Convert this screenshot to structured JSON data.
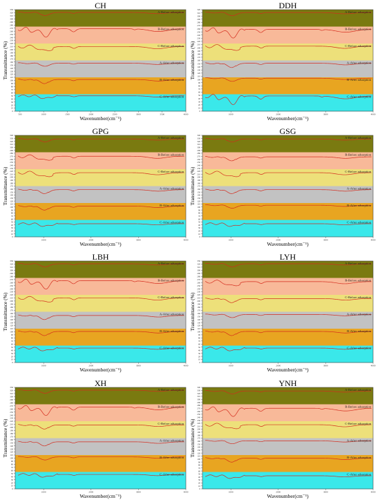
{
  "page": {
    "background": "#ffffff"
  },
  "style": {
    "line_color": "#d42a1c",
    "band_colors": [
      "#7a7a10",
      "#f8b999",
      "#ede07a",
      "#c2c2c2",
      "#e8a521",
      "#3ae8ea"
    ]
  },
  "chart_data": [
    {
      "type": "line",
      "title": "CH",
      "xlabel": "Wavenumber(cm⁻¹)",
      "ylabel": "Transmittance (%)",
      "xticks": [
        500,
        1000,
        1500,
        2000,
        2500,
        3000,
        3500,
        4000
      ],
      "xlim": [
        400,
        4000
      ],
      "yticks": [
        0,
        10,
        20,
        30,
        40,
        50,
        60,
        70,
        80,
        90,
        100,
        110,
        120,
        130,
        140,
        150,
        160,
        170,
        180,
        190,
        200,
        210,
        220,
        230,
        240,
        250,
        260,
        270,
        280,
        290,
        300,
        310,
        320,
        330
      ],
      "ylim": [
        0,
        330
      ],
      "series": [
        {
          "name": "A-Before adsorption",
          "base": 315,
          "shape": "A"
        },
        {
          "name": "B-Before adsorption",
          "base": 260,
          "shape": "B"
        },
        {
          "name": "C-Before adsorption",
          "base": 205,
          "shape": "C"
        },
        {
          "name": "A-After adsorption",
          "base": 150,
          "shape": "A"
        },
        {
          "name": "B-After adsorption",
          "base": 100,
          "shape": "D"
        },
        {
          "name": "C-After adsorption",
          "base": 48,
          "shape": "E"
        }
      ]
    },
    {
      "type": "line",
      "title": "DDH",
      "xlabel": "Wavenumber(cm⁻¹)",
      "ylabel": "Transmittance (%)",
      "xticks": [
        1000,
        2000,
        3000,
        4000
      ],
      "xlim": [
        400,
        4000
      ],
      "yticks": [
        0,
        10,
        20,
        30,
        40,
        50,
        60,
        70,
        80,
        90,
        100,
        110,
        120,
        130,
        140,
        150,
        160,
        170,
        180,
        190,
        200,
        210,
        220,
        230,
        240,
        250,
        260,
        270,
        280,
        290,
        300,
        310,
        320
      ],
      "ylim": [
        0,
        320
      ],
      "series": [
        {
          "name": "A-Before adsorption",
          "base": 305,
          "shape": "A"
        },
        {
          "name": "B-Before adsorption",
          "base": 250,
          "shape": "B"
        },
        {
          "name": "C-Before adsorption",
          "base": 200,
          "shape": "C"
        },
        {
          "name": "A-After adsorption",
          "base": 148,
          "shape": "D"
        },
        {
          "name": "B-After adsorption",
          "base": 98,
          "shape": "A"
        },
        {
          "name": "C-After adsorption",
          "base": 40,
          "shape": "B"
        }
      ]
    },
    {
      "type": "line",
      "title": "GPG",
      "xlabel": "Wavenumber(cm⁻¹)",
      "ylabel": "Transmittance (%)",
      "xticks": [
        1000,
        2000,
        3000,
        4000
      ],
      "xlim": [
        400,
        4000
      ],
      "yticks": [
        0,
        10,
        20,
        30,
        40,
        50,
        60,
        70,
        80,
        90,
        100,
        110,
        120,
        130,
        140,
        150,
        160,
        170,
        180,
        190,
        200,
        210,
        220,
        230,
        240,
        250,
        260,
        270,
        280,
        290,
        300,
        310,
        320,
        330,
        340
      ],
      "ylim": [
        0,
        340
      ],
      "series": [
        {
          "name": "A-Before adsorption",
          "base": 322,
          "shape": "A"
        },
        {
          "name": "B-Before adsorption",
          "base": 265,
          "shape": "C"
        },
        {
          "name": "C-Before adsorption",
          "base": 210,
          "shape": "C"
        },
        {
          "name": "A-After adsorption",
          "base": 155,
          "shape": "D"
        },
        {
          "name": "B-After adsorption",
          "base": 100,
          "shape": "D"
        },
        {
          "name": "C-After adsorption",
          "base": 42,
          "shape": "E"
        }
      ]
    },
    {
      "type": "line",
      "title": "GSG",
      "xlabel": "Wavenumber(cm⁻¹)",
      "ylabel": "Transmittance (%)",
      "xticks": [
        1000,
        2000,
        3000,
        4000
      ],
      "xlim": [
        400,
        4000
      ],
      "yticks": [
        0,
        10,
        20,
        30,
        40,
        50,
        60,
        70,
        80,
        90,
        100,
        110,
        120,
        130,
        140,
        150,
        160,
        170,
        180,
        190,
        200,
        210,
        220,
        230,
        240,
        250,
        260,
        270,
        280,
        290,
        300,
        310,
        320,
        330,
        340
      ],
      "ylim": [
        0,
        340
      ],
      "series": [
        {
          "name": "A-Before adsorption",
          "base": 322,
          "shape": "A"
        },
        {
          "name": "B-Before adsorption",
          "base": 265,
          "shape": "D"
        },
        {
          "name": "C-Before adsorption",
          "base": 210,
          "shape": "C"
        },
        {
          "name": "A-After adsorption",
          "base": 155,
          "shape": "D"
        },
        {
          "name": "B-After adsorption",
          "base": 100,
          "shape": "A"
        },
        {
          "name": "C-After adsorption",
          "base": 42,
          "shape": "E"
        }
      ]
    },
    {
      "type": "line",
      "title": "LBH",
      "xlabel": "Wavenumber(cm⁻¹)",
      "ylabel": "Transmittance (%)",
      "xticks": [
        1000,
        2000,
        3000,
        4000
      ],
      "xlim": [
        400,
        4000
      ],
      "yticks": [
        0,
        10,
        20,
        30,
        40,
        50,
        60,
        70,
        80,
        90,
        100,
        110,
        120,
        130,
        140,
        150,
        160,
        170,
        180,
        190,
        200,
        210,
        220,
        230,
        240,
        250,
        260,
        270,
        280,
        290,
        300,
        310,
        320,
        330
      ],
      "ylim": [
        0,
        330
      ],
      "series": [
        {
          "name": "A-Before adsorption",
          "base": 315,
          "shape": "A"
        },
        {
          "name": "B-Before adsorption",
          "base": 258,
          "shape": "B"
        },
        {
          "name": "C-Before adsorption",
          "base": 205,
          "shape": "C"
        },
        {
          "name": "A-After adsorption",
          "base": 150,
          "shape": "D"
        },
        {
          "name": "B-After adsorption",
          "base": 98,
          "shape": "D"
        },
        {
          "name": "C-After adsorption",
          "base": 45,
          "shape": "E"
        }
      ]
    },
    {
      "type": "line",
      "title": "LYH",
      "xlabel": "Wavenumber(cm⁻¹)",
      "ylabel": "Transmittance (%)",
      "xticks": [
        1000,
        2000,
        3000,
        4000
      ],
      "xlim": [
        400,
        4000
      ],
      "yticks": [
        0,
        10,
        20,
        30,
        40,
        50,
        60,
        70,
        80,
        90,
        100,
        110,
        120,
        130,
        140,
        150,
        160,
        170,
        180,
        190,
        200,
        210,
        220,
        230,
        240,
        250,
        260,
        270,
        280,
        290,
        300,
        310,
        320,
        330
      ],
      "ylim": [
        0,
        330
      ],
      "series": [
        {
          "name": "A-Before adsorption",
          "base": 315,
          "shape": "A"
        },
        {
          "name": "B-Before adsorption",
          "base": 258,
          "shape": "C"
        },
        {
          "name": "C-Before adsorption",
          "base": 205,
          "shape": "D"
        },
        {
          "name": "A-After adsorption",
          "base": 150,
          "shape": "A"
        },
        {
          "name": "B-After adsorption",
          "base": 98,
          "shape": "D"
        },
        {
          "name": "C-After adsorption",
          "base": 45,
          "shape": "E"
        }
      ]
    },
    {
      "type": "line",
      "title": "XH",
      "xlabel": "Wavenumber(cm⁻¹)",
      "ylabel": "Transmittance (%)",
      "xticks": [
        1000,
        2000,
        3000,
        4000
      ],
      "xlim": [
        400,
        4000
      ],
      "yticks": [
        0,
        10,
        20,
        30,
        40,
        50,
        60,
        70,
        80,
        90,
        100,
        110,
        120,
        130,
        140,
        150,
        160,
        170,
        180,
        190,
        200,
        210,
        220,
        230,
        240,
        250,
        260,
        270,
        280,
        290,
        300,
        310,
        320,
        330
      ],
      "ylim": [
        0,
        330
      ],
      "series": [
        {
          "name": "A-Before adsorption",
          "base": 315,
          "shape": "A"
        },
        {
          "name": "B-Before adsorption",
          "base": 258,
          "shape": "B"
        },
        {
          "name": "C-Before adsorption",
          "base": 205,
          "shape": "D"
        },
        {
          "name": "A-After adsorption",
          "base": 150,
          "shape": "D"
        },
        {
          "name": "B-After adsorption",
          "base": 98,
          "shape": "A"
        },
        {
          "name": "C-After adsorption",
          "base": 45,
          "shape": "E"
        }
      ]
    },
    {
      "type": "line",
      "title": "YNH",
      "xlabel": "Wavenumber(cm⁻¹)",
      "ylabel": "Transmittance (%)",
      "xticks": [
        1000,
        2000,
        3000,
        4000
      ],
      "xlim": [
        400,
        4000
      ],
      "yticks": [
        0,
        10,
        20,
        30,
        40,
        50,
        60,
        70,
        80,
        90,
        100,
        110,
        120,
        130,
        140,
        150,
        160,
        170,
        180,
        190,
        200,
        210,
        220,
        230,
        240,
        250,
        260,
        270,
        280,
        290,
        300,
        310,
        320,
        330,
        340
      ],
      "ylim": [
        0,
        340
      ],
      "series": [
        {
          "name": "A-Before adsorption",
          "base": 322,
          "shape": "A"
        },
        {
          "name": "B-Before adsorption",
          "base": 262,
          "shape": "B"
        },
        {
          "name": "C-Before adsorption",
          "base": 210,
          "shape": "C"
        },
        {
          "name": "A-After adsorption",
          "base": 155,
          "shape": "A"
        },
        {
          "name": "B-After adsorption",
          "base": 100,
          "shape": "D"
        },
        {
          "name": "C-After adsorption",
          "base": 42,
          "shape": "E"
        }
      ]
    }
  ]
}
